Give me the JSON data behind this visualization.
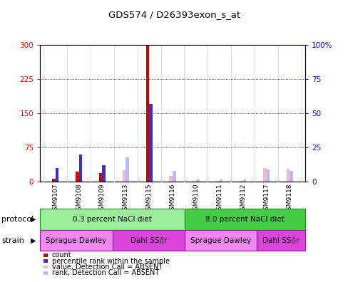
{
  "title": "GDS574 / D26393exon_s_at",
  "samples": [
    "GSM9107",
    "GSM9108",
    "GSM9109",
    "GSM9113",
    "GSM9115",
    "GSM9116",
    "GSM9110",
    "GSM9111",
    "GSM9112",
    "GSM9117",
    "GSM9118"
  ],
  "count_values": [
    7,
    22,
    20,
    0,
    300,
    0,
    0,
    0,
    0,
    0,
    0
  ],
  "rank_values": [
    10,
    20,
    12,
    0,
    57,
    5,
    0,
    0,
    0,
    0,
    0
  ],
  "absent_value_values": [
    0,
    0,
    0,
    25,
    0,
    13,
    2,
    2,
    2,
    30,
    28
  ],
  "absent_rank_values": [
    0,
    0,
    0,
    18,
    0,
    8,
    2,
    2,
    2,
    9,
    8
  ],
  "count_color": "#cc0000",
  "rank_color": "#3333cc",
  "absent_value_color": "#ffb8b8",
  "absent_rank_color": "#b8b8ff",
  "ylim_left": [
    0,
    300
  ],
  "ylim_right": [
    0,
    100
  ],
  "yticks_left": [
    0,
    75,
    150,
    225,
    300
  ],
  "yticks_right": [
    0,
    25,
    50,
    75,
    100
  ],
  "ytick_labels_right": [
    "0",
    "25",
    "50",
    "75",
    "100%"
  ],
  "protocol_groups": [
    {
      "label": "0.3 percent NaCl diet",
      "start": 0,
      "end": 6,
      "color": "#99ee99"
    },
    {
      "label": "8.0 percent NaCl diet",
      "start": 6,
      "end": 11,
      "color": "#44cc44"
    }
  ],
  "strain_groups": [
    {
      "label": "Sprague Dawley",
      "start": 0,
      "end": 3,
      "color": "#f088f0"
    },
    {
      "label": "Dahl SS/Jr",
      "start": 3,
      "end": 6,
      "color": "#dd44dd"
    },
    {
      "label": "Sprague Dawley",
      "start": 6,
      "end": 9,
      "color": "#f088f0"
    },
    {
      "label": "Dahl SS/Jr",
      "start": 9,
      "end": 11,
      "color": "#dd44dd"
    }
  ],
  "legend_items": [
    {
      "label": "count",
      "color": "#cc0000"
    },
    {
      "label": "percentile rank within the sample",
      "color": "#3333cc"
    },
    {
      "label": "value, Detection Call = ABSENT",
      "color": "#ffb8b8"
    },
    {
      "label": "rank, Detection Call = ABSENT",
      "color": "#b8b8ff"
    }
  ],
  "bar_width": 0.28,
  "plot_bg": "#ffffff",
  "tick_bg": "#d0d0d0",
  "sample_label_bg": "#d0d0d0"
}
